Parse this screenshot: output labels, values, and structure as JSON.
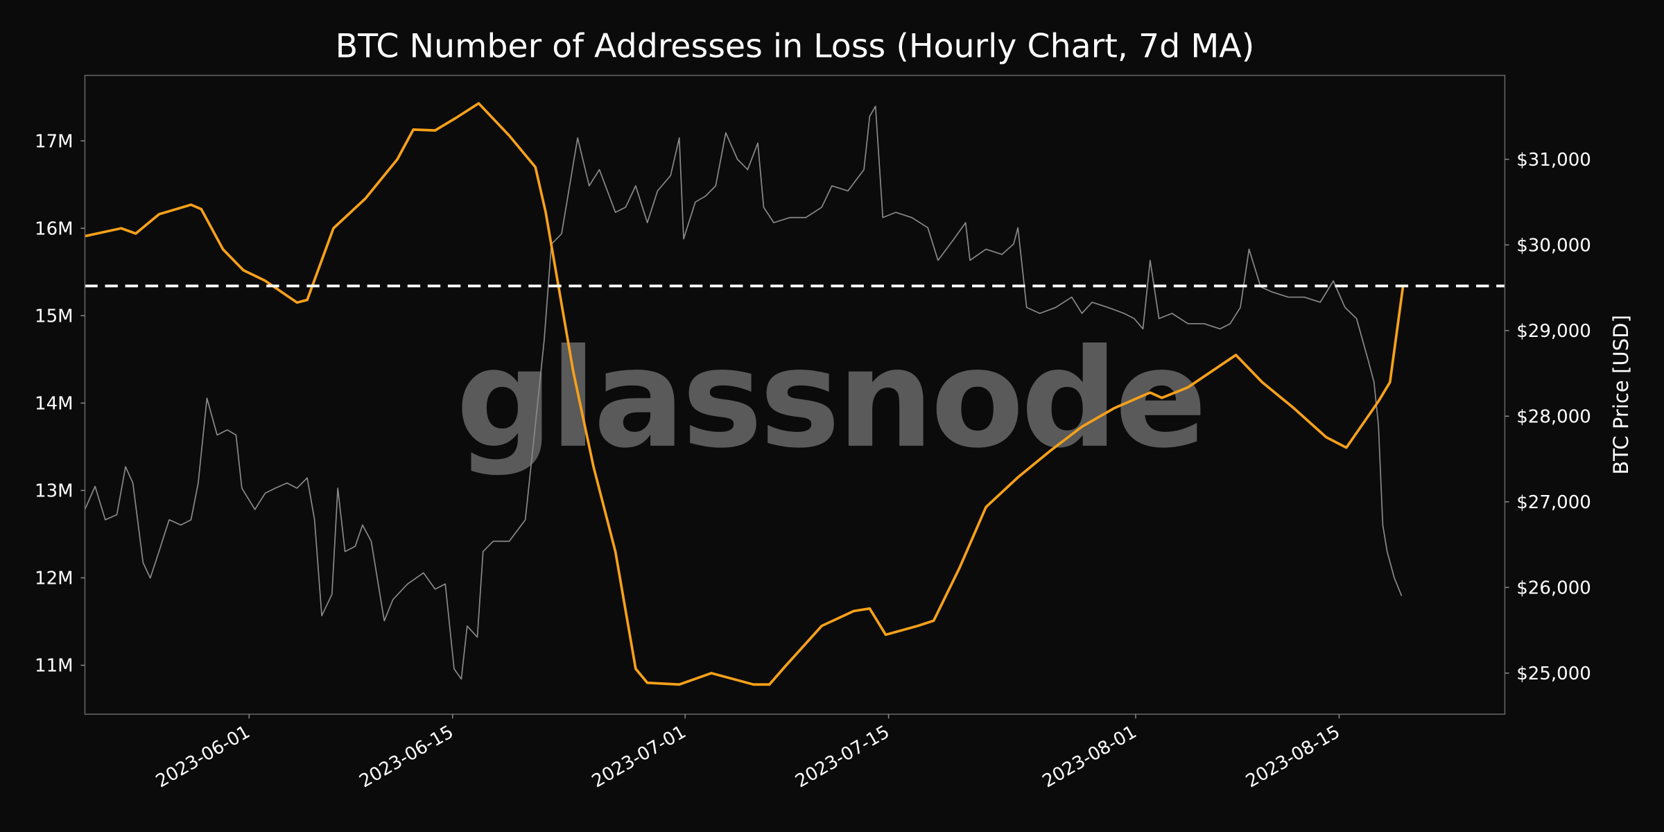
{
  "chart_data": {
    "type": "line",
    "title": "BTC Number of Addresses in Loss (Hourly Chart, 7d MA)",
    "watermark": "glassnode",
    "x_unit": "days since 2023-06-01",
    "xlim": [
      -11.3,
      86.4
    ],
    "x_ticks": [
      {
        "value": 0,
        "label": "2023-06-01"
      },
      {
        "value": 14,
        "label": "2023-06-15"
      },
      {
        "value": 30,
        "label": "2023-07-01"
      },
      {
        "value": 44,
        "label": "2023-07-15"
      },
      {
        "value": 61,
        "label": "2023-08-01"
      },
      {
        "value": 75,
        "label": "2023-08-15"
      }
    ],
    "y_left": {
      "label": "",
      "lim": [
        10.44,
        17.75
      ],
      "ticks": [
        {
          "value": 11,
          "label": "11M"
        },
        {
          "value": 12,
          "label": "12M"
        },
        {
          "value": 13,
          "label": "13M"
        },
        {
          "value": 14,
          "label": "14M"
        },
        {
          "value": 15,
          "label": "15M"
        },
        {
          "value": 16,
          "label": "16M"
        },
        {
          "value": 17,
          "label": "17M"
        }
      ]
    },
    "y_right": {
      "label": "BTC Price [USD]",
      "lim": [
        24520,
        31980
      ],
      "ticks": [
        {
          "value": 25000,
          "label": "$25,000"
        },
        {
          "value": 26000,
          "label": "$26,000"
        },
        {
          "value": 27000,
          "label": "$27,000"
        },
        {
          "value": 28000,
          "label": "$28,000"
        },
        {
          "value": 29000,
          "label": "$29,000"
        },
        {
          "value": 30000,
          "label": "$30,000"
        },
        {
          "value": 31000,
          "label": "$31,000"
        }
      ]
    },
    "reference_line": {
      "axis": "left",
      "value": 15.34,
      "style": "dashed",
      "color": "#ffffff"
    },
    "grid": false,
    "series": [
      {
        "name": "Addresses in Loss (7d MA, millions)",
        "axis": "left",
        "color": "#f7a11a",
        "x": [
          -11.3,
          -8.8,
          -7.8,
          -6.2,
          -4.0,
          -3.3,
          -1.8,
          -0.4,
          1.1,
          3.3,
          4.0,
          5.8,
          8.0,
          10.2,
          11.3,
          12.8,
          14.2,
          15.8,
          17.9,
          19.7,
          20.4,
          22.3,
          23.7,
          25.2,
          26.6,
          27.4,
          29.6,
          31.8,
          34.7,
          35.8,
          36.9,
          39.4,
          41.6,
          42.7,
          43.8,
          46.0,
          47.1,
          48.9,
          50.7,
          52.9,
          55.1,
          57.3,
          59.5,
          62.0,
          62.8,
          64.6,
          67.9,
          69.7,
          71.9,
          74.1,
          75.5,
          77.7,
          78.5,
          79.4
        ],
        "values": [
          15.91,
          16.0,
          15.94,
          16.16,
          16.27,
          16.22,
          15.76,
          15.52,
          15.4,
          15.15,
          15.18,
          16.0,
          16.34,
          16.79,
          17.13,
          17.12,
          17.26,
          17.43,
          17.06,
          16.7,
          16.19,
          14.36,
          13.27,
          12.3,
          10.96,
          10.8,
          10.78,
          10.91,
          10.78,
          10.78,
          10.99,
          11.45,
          11.62,
          11.65,
          11.35,
          11.45,
          11.51,
          12.12,
          12.81,
          13.15,
          13.45,
          13.73,
          13.94,
          14.12,
          14.06,
          14.18,
          14.55,
          14.24,
          13.94,
          13.61,
          13.49,
          14.02,
          14.24,
          15.34
        ]
      },
      {
        "name": "BTC Price (USD)",
        "axis": "right",
        "color": "#8a8a8a",
        "x": [
          -11.3,
          -10.6,
          -9.9,
          -9.1,
          -8.5,
          -8.0,
          -7.3,
          -6.8,
          -6.2,
          -5.5,
          -4.7,
          -4.0,
          -3.5,
          -2.9,
          -2.2,
          -1.5,
          -0.9,
          -0.5,
          0.4,
          1.1,
          1.8,
          2.6,
          3.3,
          4.0,
          4.5,
          5.0,
          5.7,
          6.1,
          6.6,
          7.3,
          7.8,
          8.4,
          9.3,
          9.9,
          10.9,
          12.0,
          12.8,
          13.5,
          14.1,
          14.6,
          15.0,
          15.7,
          16.1,
          16.8,
          17.9,
          19.0,
          19.7,
          20.3,
          20.8,
          21.5,
          22.6,
          23.4,
          24.1,
          25.2,
          25.9,
          26.6,
          27.4,
          28.1,
          29.0,
          29.6,
          29.9,
          30.7,
          31.4,
          32.1,
          32.8,
          33.6,
          34.3,
          35.0,
          35.4,
          36.1,
          37.2,
          38.3,
          39.4,
          40.1,
          41.2,
          42.3,
          42.7,
          43.1,
          43.6,
          44.5,
          45.6,
          46.7,
          47.4,
          48.5,
          49.3,
          49.6,
          50.7,
          51.8,
          52.6,
          52.9,
          53.5,
          54.4,
          55.5,
          56.6,
          57.3,
          58.0,
          59.1,
          60.2,
          60.9,
          61.5,
          62.0,
          62.6,
          63.5,
          64.6,
          65.7,
          66.8,
          67.5,
          68.2,
          68.8,
          69.6,
          70.4,
          71.5,
          72.6,
          73.7,
          74.6,
          75.4,
          76.2,
          77.0,
          77.4,
          77.7,
          78.0,
          78.3,
          78.8,
          79.3
        ],
        "values": [
          26910,
          27180,
          26790,
          26850,
          27410,
          27220,
          26290,
          26110,
          26420,
          26790,
          26730,
          26790,
          27220,
          28210,
          27780,
          27840,
          27780,
          27160,
          26910,
          27100,
          27160,
          27220,
          27160,
          27280,
          26790,
          25670,
          25920,
          27160,
          26420,
          26480,
          26730,
          26540,
          25610,
          25860,
          26040,
          26170,
          25980,
          26040,
          25050,
          24930,
          25550,
          25420,
          26420,
          26540,
          26540,
          26790,
          27900,
          28890,
          30010,
          30130,
          31250,
          30690,
          30880,
          30380,
          30440,
          30690,
          30260,
          30630,
          30810,
          31250,
          30070,
          30500,
          30570,
          30690,
          31310,
          31000,
          30880,
          31190,
          30440,
          30260,
          30320,
          30320,
          30440,
          30690,
          30630,
          30880,
          31500,
          31620,
          30320,
          30380,
          30320,
          30200,
          29820,
          30070,
          30260,
          29820,
          29950,
          29890,
          30010,
          30200,
          29270,
          29200,
          29270,
          29390,
          29200,
          29330,
          29270,
          29200,
          29140,
          29020,
          29820,
          29140,
          29200,
          29080,
          29080,
          29020,
          29080,
          29270,
          29950,
          29510,
          29450,
          29390,
          29390,
          29330,
          29580,
          29270,
          29140,
          28650,
          28400,
          27900,
          26730,
          26420,
          26110,
          25900
        ]
      }
    ]
  }
}
